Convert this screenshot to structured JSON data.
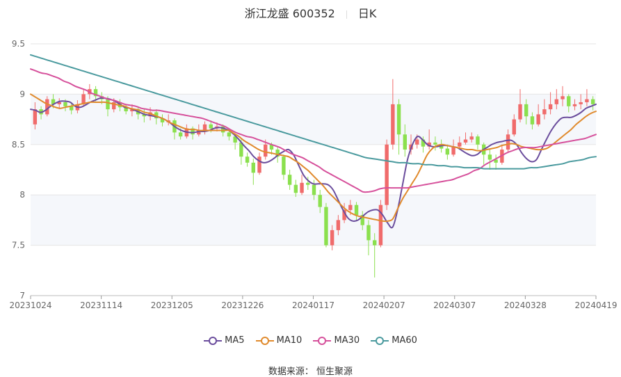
{
  "header": {
    "title": "浙江龙盛 600352",
    "period": "日K"
  },
  "source": "数据来源：  恒生聚源",
  "colors": {
    "up": "#f06b6b",
    "down": "#8be04e",
    "ma5": "#6a4c9c",
    "ma10": "#e08a2c",
    "ma30": "#d6509b",
    "ma60": "#4a9a9e"
  },
  "chart_data": {
    "type": "candlestick",
    "title": "浙江龙盛 600352",
    "y_range": [
      7,
      9.5
    ],
    "y_ticks": [
      "9.5",
      "9",
      "8.5",
      "8",
      "7.5",
      "7"
    ],
    "x_ticks": [
      "20231024",
      "20231114",
      "20231205",
      "20231226",
      "20240117",
      "20240207",
      "20240307",
      "20240328",
      "20240419"
    ],
    "legend_position": "bottom-center",
    "grid": true,
    "series": [
      {
        "name": "MA5",
        "key": "ma5",
        "values": [
          8.85,
          8.84,
          8.82,
          8.84,
          8.88,
          8.91,
          8.93,
          8.93,
          8.92,
          8.88,
          8.87,
          8.89,
          8.92,
          8.94,
          8.96,
          8.96,
          8.95,
          8.93,
          8.9,
          8.87,
          8.86,
          8.84,
          8.82,
          8.8,
          8.79,
          8.78,
          8.77,
          8.75,
          8.72,
          8.68,
          8.65,
          8.63,
          8.62,
          8.62,
          8.63,
          8.63,
          8.64,
          8.66,
          8.67,
          8.66,
          8.64,
          8.6,
          8.55,
          8.49,
          8.44,
          8.38,
          8.34,
          8.32,
          8.33,
          8.36,
          8.4,
          8.43,
          8.45,
          8.4,
          8.3,
          8.2,
          8.14,
          8.11,
          8.11,
          8.11,
          8.1,
          8.05,
          7.95,
          7.85,
          7.77,
          7.74,
          7.75,
          7.79,
          7.83,
          7.85,
          7.85,
          7.8,
          7.72,
          7.68,
          7.85,
          8.1,
          8.35,
          8.5,
          8.58,
          8.55,
          8.5,
          8.48,
          8.48,
          8.49,
          8.49,
          8.48,
          8.47,
          8.44,
          8.41,
          8.39,
          8.4,
          8.44,
          8.47,
          8.5,
          8.52,
          8.53,
          8.54,
          8.54,
          8.5,
          8.42,
          8.36,
          8.33,
          8.35,
          8.45,
          8.55,
          8.64,
          8.71,
          8.76,
          8.77,
          8.77,
          8.79,
          8.82,
          8.86,
          8.88,
          8.9
        ]
      },
      {
        "name": "MA10",
        "key": "ma10",
        "values": [
          9.0,
          8.97,
          8.94,
          8.91,
          8.89,
          8.87,
          8.86,
          8.87,
          8.88,
          8.89,
          8.9,
          8.91,
          8.92,
          8.92,
          8.92,
          8.92,
          8.91,
          8.9,
          8.89,
          8.88,
          8.86,
          8.85,
          8.84,
          8.82,
          8.81,
          8.79,
          8.77,
          8.75,
          8.72,
          8.7,
          8.68,
          8.66,
          8.65,
          8.65,
          8.64,
          8.64,
          8.64,
          8.64,
          8.64,
          8.64,
          8.64,
          8.61,
          8.58,
          8.54,
          8.51,
          8.48,
          8.45,
          8.43,
          8.42,
          8.41,
          8.4,
          8.39,
          8.38,
          8.35,
          8.32,
          8.28,
          8.24,
          8.19,
          8.14,
          8.09,
          8.03,
          7.98,
          7.93,
          7.88,
          7.84,
          7.81,
          7.79,
          7.78,
          7.77,
          7.76,
          7.75,
          7.74,
          7.74,
          7.76,
          7.86,
          7.96,
          8.04,
          8.12,
          8.2,
          8.3,
          8.4,
          8.46,
          8.49,
          8.5,
          8.49,
          8.48,
          8.47,
          8.46,
          8.45,
          8.45,
          8.44,
          8.44,
          8.45,
          8.46,
          8.47,
          8.49,
          8.5,
          8.51,
          8.5,
          8.48,
          8.47,
          8.46,
          8.45,
          8.45,
          8.46,
          8.49,
          8.53,
          8.57,
          8.61,
          8.65,
          8.7,
          8.74,
          8.78,
          8.81,
          8.83
        ]
      },
      {
        "name": "MA30",
        "key": "ma30",
        "values": [
          9.25,
          9.23,
          9.21,
          9.2,
          9.18,
          9.16,
          9.13,
          9.11,
          9.08,
          9.06,
          9.04,
          9.01,
          8.99,
          8.97,
          8.95,
          8.94,
          8.92,
          8.9,
          8.89,
          8.88,
          8.86,
          8.85,
          8.84,
          8.84,
          8.83,
          8.82,
          8.81,
          8.8,
          8.79,
          8.78,
          8.77,
          8.76,
          8.74,
          8.72,
          8.7,
          8.68,
          8.65,
          8.62,
          8.6,
          8.58,
          8.57,
          8.55,
          8.53,
          8.51,
          8.49,
          8.47,
          8.44,
          8.41,
          8.39,
          8.37,
          8.34,
          8.31,
          8.28,
          8.24,
          8.21,
          8.18,
          8.15,
          8.12,
          8.09,
          8.06,
          8.03,
          8.03,
          8.04,
          8.06,
          8.07,
          8.07,
          8.07,
          8.07,
          8.07,
          8.08,
          8.09,
          8.1,
          8.11,
          8.12,
          8.13,
          8.14,
          8.15,
          8.17,
          8.19,
          8.21,
          8.24,
          8.26,
          8.3,
          8.33,
          8.36,
          8.39,
          8.42,
          8.44,
          8.46,
          8.47,
          8.47,
          8.47,
          8.48,
          8.49,
          8.5,
          8.51,
          8.52,
          8.53,
          8.54,
          8.55,
          8.56,
          8.58,
          8.6
        ]
      },
      {
        "name": "MA60",
        "key": "ma60",
        "values": [
          9.39,
          9.37,
          9.35,
          9.33,
          9.31,
          9.29,
          9.27,
          9.25,
          9.23,
          9.21,
          9.19,
          9.17,
          9.15,
          9.13,
          9.11,
          9.09,
          9.07,
          9.05,
          9.03,
          9.01,
          8.99,
          8.97,
          8.95,
          8.93,
          8.91,
          8.89,
          8.87,
          8.85,
          8.83,
          8.81,
          8.79,
          8.77,
          8.75,
          8.73,
          8.71,
          8.69,
          8.67,
          8.65,
          8.63,
          8.61,
          8.59,
          8.57,
          8.55,
          8.53,
          8.51,
          8.49,
          8.47,
          8.45,
          8.43,
          8.41,
          8.39,
          8.37,
          8.36,
          8.35,
          8.34,
          8.33,
          8.32,
          8.32,
          8.31,
          8.31,
          8.3,
          8.3,
          8.29,
          8.29,
          8.28,
          8.28,
          8.27,
          8.27,
          8.27,
          8.26,
          8.26,
          8.26,
          8.26,
          8.26,
          8.26,
          8.26,
          8.27,
          8.27,
          8.28,
          8.29,
          8.3,
          8.31,
          8.33,
          8.34,
          8.35,
          8.37,
          8.38
        ]
      }
    ],
    "candles": [
      [
        8.7,
        8.85,
        8.92,
        8.65
      ],
      [
        8.85,
        8.8,
        8.88,
        8.75
      ],
      [
        8.8,
        8.95,
        8.98,
        8.78
      ],
      [
        8.95,
        8.9,
        9.0,
        8.86
      ],
      [
        8.9,
        8.92,
        8.96,
        8.85
      ],
      [
        8.92,
        8.88,
        8.95,
        8.83
      ],
      [
        8.88,
        8.84,
        8.92,
        8.8
      ],
      [
        8.84,
        8.9,
        8.94,
        8.81
      ],
      [
        8.9,
        9.0,
        9.05,
        8.88
      ],
      [
        9.0,
        9.05,
        9.1,
        8.95
      ],
      [
        9.05,
        8.98,
        9.08,
        8.93
      ],
      [
        8.98,
        8.95,
        9.02,
        8.9
      ],
      [
        8.95,
        8.85,
        8.98,
        8.78
      ],
      [
        8.85,
        8.92,
        8.96,
        8.82
      ],
      [
        8.92,
        8.87,
        8.95,
        8.83
      ],
      [
        8.87,
        8.83,
        8.9,
        8.8
      ],
      [
        8.83,
        8.85,
        8.9,
        8.78
      ],
      [
        8.85,
        8.8,
        8.88,
        8.75
      ],
      [
        8.8,
        8.78,
        8.85,
        8.72
      ],
      [
        8.78,
        8.82,
        8.87,
        8.74
      ],
      [
        8.82,
        8.76,
        8.85,
        8.7
      ],
      [
        8.76,
        8.72,
        8.8,
        8.68
      ],
      [
        8.72,
        8.74,
        8.8,
        8.69
      ],
      [
        8.74,
        8.62,
        8.76,
        8.55
      ],
      [
        8.62,
        8.58,
        8.66,
        8.55
      ],
      [
        8.58,
        8.66,
        8.7,
        8.56
      ],
      [
        8.66,
        8.6,
        8.68,
        8.55
      ],
      [
        8.6,
        8.64,
        8.7,
        8.58
      ],
      [
        8.64,
        8.7,
        8.73,
        8.6
      ],
      [
        8.7,
        8.66,
        8.74,
        8.62
      ],
      [
        8.66,
        8.68,
        8.72,
        8.63
      ],
      [
        8.68,
        8.62,
        8.7,
        8.58
      ],
      [
        8.62,
        8.58,
        8.65,
        8.54
      ],
      [
        8.58,
        8.52,
        8.6,
        8.45
      ],
      [
        8.52,
        8.38,
        8.55,
        8.3
      ],
      [
        8.38,
        8.32,
        8.42,
        8.28
      ],
      [
        8.32,
        8.22,
        8.36,
        8.1
      ],
      [
        8.22,
        8.38,
        8.42,
        8.2
      ],
      [
        8.38,
        8.5,
        8.55,
        8.35
      ],
      [
        8.5,
        8.45,
        8.52,
        8.4
      ],
      [
        8.45,
        8.38,
        8.48,
        8.32
      ],
      [
        8.38,
        8.2,
        8.4,
        8.15
      ],
      [
        8.2,
        8.1,
        8.25,
        8.05
      ],
      [
        8.1,
        8.02,
        8.15,
        7.98
      ],
      [
        8.02,
        8.12,
        8.2,
        8.0
      ],
      [
        8.12,
        8.1,
        8.18,
        8.05
      ],
      [
        8.1,
        8.0,
        8.15,
        7.95
      ],
      [
        8.0,
        7.88,
        8.05,
        7.82
      ],
      [
        7.88,
        7.5,
        7.92,
        7.48
      ],
      [
        7.5,
        7.65,
        7.7,
        7.45
      ],
      [
        7.65,
        7.75,
        7.8,
        7.6
      ],
      [
        7.75,
        7.85,
        7.92,
        7.72
      ],
      [
        7.85,
        7.9,
        7.95,
        7.8
      ],
      [
        7.9,
        7.8,
        7.93,
        7.75
      ],
      [
        7.8,
        7.7,
        7.84,
        7.65
      ],
      [
        7.7,
        7.55,
        7.75,
        7.4
      ],
      [
        7.55,
        7.5,
        7.62,
        7.18
      ],
      [
        7.5,
        7.9,
        7.95,
        7.48
      ],
      [
        7.9,
        8.5,
        8.55,
        7.85
      ],
      [
        8.5,
        8.9,
        9.15,
        8.45
      ],
      [
        8.9,
        8.6,
        8.95,
        8.4
      ],
      [
        8.6,
        8.45,
        8.7,
        8.38
      ],
      [
        8.45,
        8.5,
        8.6,
        8.4
      ],
      [
        8.5,
        8.55,
        8.6,
        8.46
      ],
      [
        8.55,
        8.48,
        8.58,
        8.42
      ],
      [
        8.48,
        8.52,
        8.65,
        8.45
      ],
      [
        8.52,
        8.5,
        8.58,
        8.44
      ],
      [
        8.5,
        8.46,
        8.55,
        8.42
      ],
      [
        8.46,
        8.4,
        8.5,
        8.35
      ],
      [
        8.4,
        8.48,
        8.55,
        8.38
      ],
      [
        8.48,
        8.52,
        8.58,
        8.45
      ],
      [
        8.52,
        8.55,
        8.62,
        8.5
      ],
      [
        8.55,
        8.58,
        8.62,
        8.52
      ],
      [
        8.58,
        8.5,
        8.6,
        8.45
      ],
      [
        8.5,
        8.4,
        8.52,
        8.3
      ],
      [
        8.4,
        8.35,
        8.45,
        8.25
      ],
      [
        8.35,
        8.32,
        8.4,
        8.25
      ],
      [
        8.32,
        8.45,
        8.5,
        8.3
      ],
      [
        8.45,
        8.6,
        8.65,
        8.42
      ],
      [
        8.6,
        8.75,
        8.8,
        8.58
      ],
      [
        8.75,
        8.9,
        9.05,
        8.72
      ],
      [
        8.9,
        8.78,
        8.95,
        8.7
      ],
      [
        8.78,
        8.7,
        8.82,
        8.65
      ],
      [
        8.7,
        8.8,
        8.9,
        8.68
      ],
      [
        8.8,
        8.85,
        8.95,
        8.75
      ],
      [
        8.85,
        8.9,
        9.02,
        8.8
      ],
      [
        8.9,
        8.95,
        9.05,
        8.85
      ],
      [
        8.95,
        8.98,
        9.08,
        8.88
      ],
      [
        8.98,
        8.88,
        9.0,
        8.82
      ],
      [
        8.88,
        8.9,
        8.95,
        8.84
      ],
      [
        8.9,
        8.92,
        9.0,
        8.85
      ],
      [
        8.92,
        8.95,
        9.05,
        8.88
      ],
      [
        8.95,
        8.9,
        8.98,
        8.84
      ]
    ]
  }
}
